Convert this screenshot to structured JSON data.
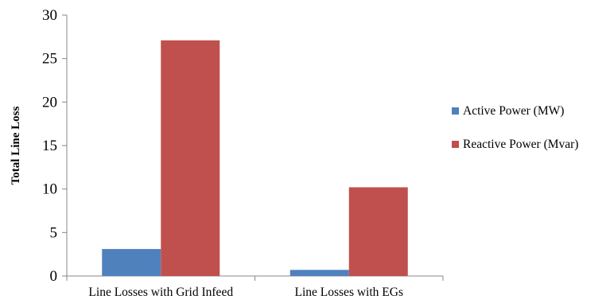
{
  "chart_data": {
    "type": "bar",
    "title": "",
    "xlabel": "",
    "ylabel": "Total Line Loss",
    "ylim": [
      0,
      30
    ],
    "yticks": [
      0,
      5,
      10,
      15,
      20,
      25,
      30
    ],
    "grid": false,
    "legend_position": "right",
    "categories": [
      "Line Losses with Grid Infeed",
      "Line Losses with EGs"
    ],
    "series": [
      {
        "name": "Active Power (MW)",
        "color": "#4f81bd",
        "values": [
          3.1,
          0.7
        ]
      },
      {
        "name": "Reactive Power (Mvar)",
        "color": "#c0504d",
        "values": [
          27.1,
          10.2
        ]
      }
    ]
  }
}
